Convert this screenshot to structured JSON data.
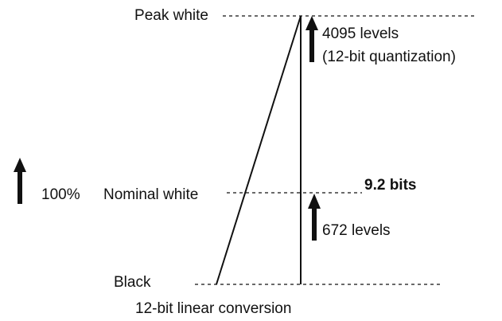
{
  "labels": {
    "peak_white": "Peak white",
    "nominal_white": "Nominal white",
    "black": "Black",
    "percent": "100%"
  },
  "annotations": {
    "upper_levels": "4095 levels",
    "quantization": "(12-bit quantization)",
    "bits": "9.2 bits",
    "lower_levels": "672 levels"
  },
  "caption": "12-bit linear conversion"
}
